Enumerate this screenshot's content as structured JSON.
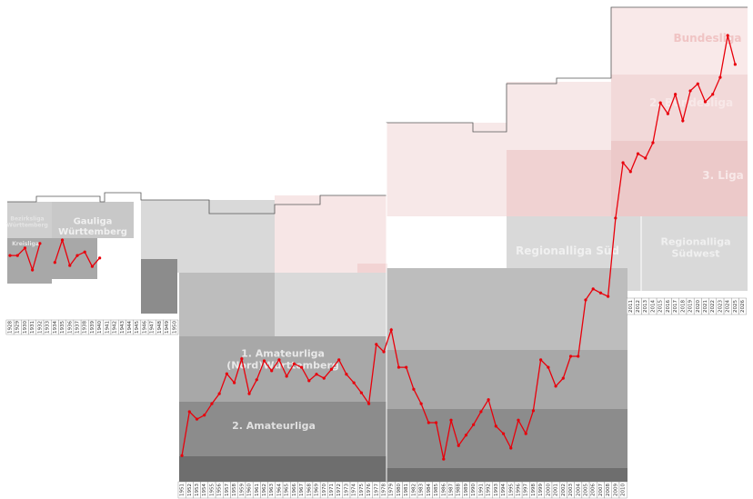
{
  "chart_data": {
    "type": "line",
    "x": [
      1928,
      1929,
      1930,
      1931,
      1932,
      1933,
      1934,
      1935,
      1936,
      1937,
      1938,
      1939,
      1940,
      1941,
      1942,
      1943,
      1944,
      1945,
      1946,
      1947,
      1948,
      1949,
      1950,
      1951,
      1952,
      1953,
      1954,
      1955,
      1956,
      1957,
      1958,
      1959,
      1960,
      1961,
      1962,
      1963,
      1964,
      1965,
      1966,
      1967,
      1968,
      1969,
      1970,
      1971,
      1972,
      1973,
      1974,
      1975,
      1976,
      1977,
      1978,
      1979,
      1980,
      1981,
      1982,
      1983,
      1984,
      1985,
      1986,
      1987,
      1988,
      1989,
      1990,
      1991,
      1992,
      1993,
      1994,
      1995,
      1996,
      1997,
      1998,
      1999,
      2000,
      2001,
      2002,
      2003,
      2004,
      2005,
      2006,
      2007,
      2008,
      2009,
      2010,
      2011,
      2012,
      2013,
      2014,
      2015,
      2016,
      2017,
      2018,
      2019,
      2020,
      2021,
      2022,
      2023,
      2024,
      2025,
      2026
    ],
    "xlim": [
      1928,
      2026
    ],
    "ylim": [
      100,
      0
    ],
    "series": [
      {
        "color": "#e8000b",
        "values": [
          51.2,
          51.2,
          49.7,
          54.1,
          48.8,
          null,
          52.6,
          48.1,
          53.2,
          51.2,
          50.5,
          53.4,
          51.7,
          null,
          null,
          null,
          null,
          null,
          null,
          null,
          null,
          null,
          null,
          91.3,
          82.5,
          84.0,
          83.2,
          80.9,
          78.9,
          74.9,
          76.7,
          71.9,
          78.9,
          76.1,
          72.3,
          74.3,
          72.1,
          75.4,
          72.9,
          73.6,
          76.3,
          75.0,
          75.8,
          74.0,
          72.1,
          75.0,
          76.7,
          78.7,
          80.9,
          69.0,
          70.5,
          66.1,
          73.6,
          73.6,
          78.0,
          80.9,
          84.7,
          84.7,
          92.0,
          84.2,
          89.3,
          87.2,
          85.1,
          82.5,
          80.1,
          85.4,
          86.9,
          89.8,
          84.2,
          86.9,
          82.3,
          72.1,
          73.6,
          77.4,
          75.8,
          71.4,
          71.4,
          60.1,
          57.9,
          58.7,
          59.4,
          43.7,
          32.6,
          34.4,
          30.8,
          31.7,
          28.6,
          20.6,
          22.8,
          18.9,
          24.2,
          18.2,
          16.8,
          20.4,
          18.9,
          15.5,
          7.1,
          12.9,
          null
        ]
      }
    ],
    "annotations": [
      "Bezirksliga Württemberg",
      "Kreisliga",
      "Gauliga Württemberg",
      "1. Amateurliga (Nord)Württemberg",
      "2. Amateurliga",
      "Regionalliga Süd",
      "Regionalliga Südwest",
      "3. Liga",
      "2. Bundesliga",
      "Bundesliga"
    ]
  }
}
